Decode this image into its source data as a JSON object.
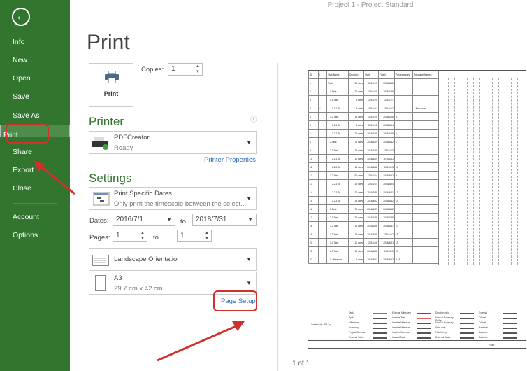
{
  "window": {
    "title": "Project 1 - Project Standard"
  },
  "sidebar": {
    "items": [
      "Info",
      "New",
      "Open",
      "Save",
      "Save As",
      "Print",
      "Share",
      "Export",
      "Close",
      "Account",
      "Options"
    ],
    "selected": "Print",
    "accent": "#31752f"
  },
  "print": {
    "title": "Print",
    "button": "Print",
    "copies_label": "Copies:",
    "copies": "1"
  },
  "printer": {
    "heading": "Printer",
    "name": "PDFCreator",
    "status": "Ready",
    "properties_link": "Printer Properties"
  },
  "settings": {
    "heading": "Settings",
    "range_title": "Print Specific Dates",
    "range_desc": "Only print the timescale between the select...",
    "dates_label": "Dates:",
    "date_from": "2016/7/1",
    "to1": "to",
    "date_to": "2018/7/31",
    "pages_label": "Pages:",
    "page_from": "1",
    "to2": "to",
    "page_to": "1",
    "orientation": "Landscape Orientation",
    "paper": "A3",
    "paper_size": "29.7 cm x 42 cm",
    "page_setup_link": "Page Setup"
  },
  "preview": {
    "headers": [
      "ID",
      "i",
      "Task Name",
      "Duration",
      "Start",
      "Finish",
      "Predecessors",
      "Resource Names"
    ],
    "rows": [
      [
        "1",
        "",
        "Task",
        "35 days",
        "2016/1/5",
        "2016/3/12",
        "",
        ""
      ],
      [
        "2",
        "",
        "1.Task",
        "20 days",
        "2016/1/5",
        "2016/1/28",
        "",
        ""
      ],
      [
        "3",
        "",
        "1.1 Task",
        "5 days",
        "2016/1/5",
        "2016/1/7",
        "",
        ""
      ],
      [
        "4",
        "note",
        "1.1.1 Ta",
        "5 days",
        "2016/1/1",
        "2016/1/7",
        "",
        "1.Resource"
      ],
      [
        "5",
        "",
        "1.2 Task",
        "15 days",
        "2016/1/5",
        "2016/1/28",
        "3",
        ""
      ],
      [
        "6",
        "",
        "1.2.1 Ta",
        "5 days",
        "2016/1/8",
        "2016/1/14",
        "",
        ""
      ],
      [
        "7",
        "",
        "1.2.2 Ta",
        "10 days",
        "2016/1/15",
        "2016/1/28",
        "6",
        ""
      ],
      [
        "8",
        "",
        "2.Task",
        "75 days",
        "2016/1/29",
        "2016/5/12",
        "2",
        ""
      ],
      [
        "9",
        "",
        "2.1 Task",
        "25 days",
        "2016/1/29",
        "2016/3/3",
        "",
        ""
      ],
      [
        "10",
        "",
        "2.1.1 Ta",
        "10 days",
        "2016/1/29",
        "2016/2/11",
        "",
        ""
      ],
      [
        "11",
        "",
        "2.1.2 Ta",
        "15 days",
        "2016/2/12",
        "2016/3/3",
        "10",
        ""
      ],
      [
        "12",
        "",
        "2.2 Task",
        "50 days",
        "2016/3/4",
        "2016/5/12",
        "9",
        ""
      ],
      [
        "13",
        "",
        "2.2.1 Ta",
        "15 days",
        "2016/3/4",
        "2016/3/24",
        "",
        ""
      ],
      [
        "14",
        "",
        "2.2.2 Ta",
        "20 days",
        "2016/3/25",
        "2016/4/21",
        "13",
        ""
      ],
      [
        "15",
        "",
        "2.2.3 Ta",
        "15 days",
        "2016/4/22",
        "2016/5/12",
        "14",
        ""
      ],
      [
        "16",
        "",
        "3.Task",
        "75 days",
        "2016/1/29",
        "2016/5/12",
        "",
        ""
      ],
      [
        "17",
        "",
        "3.1 Task",
        "20 days",
        "2016/1/29",
        "2016/2/25",
        "",
        ""
      ],
      [
        "18",
        "",
        "3.2 Task",
        "15 days",
        "2016/2/26",
        "2016/3/17",
        "17",
        ""
      ],
      [
        "19",
        "",
        "3.3 Task",
        "15 days",
        "2016/3/18",
        "2016/4/7",
        "18",
        ""
      ],
      [
        "20",
        "",
        "3.4 Task",
        "10 days",
        "2016/4/8",
        "2016/4/21",
        "19",
        ""
      ],
      [
        "21",
        "",
        "3.5 Task",
        "10 days",
        "2016/4/22",
        "2016/5/5",
        "20",
        ""
      ],
      [
        "22",
        "",
        "1. Milestone",
        "0 days",
        "2016/5/12",
        "2016/5/12",
        "3,18",
        ""
      ]
    ],
    "created_by": "Created by: PM Jin",
    "legend": [
      "Task",
      "Split",
      "Milestone",
      "Summary",
      "Project Summary",
      "External Tasks",
      "External Milestone",
      "Inactive Task",
      "Inactive Milestone",
      "Inactive Milestone",
      "Inactive Summary",
      "Manual Task",
      "Duration-only",
      "Manual Summary Rollup",
      "Manual Summary",
      "Start-only",
      "Finish-only",
      "External Tasks",
      "External",
      "Critical",
      "Critical",
      "Baseline",
      "Baseline",
      "Baseline"
    ],
    "footer_page": "Page 1",
    "page_indicator": "1 of 1"
  }
}
